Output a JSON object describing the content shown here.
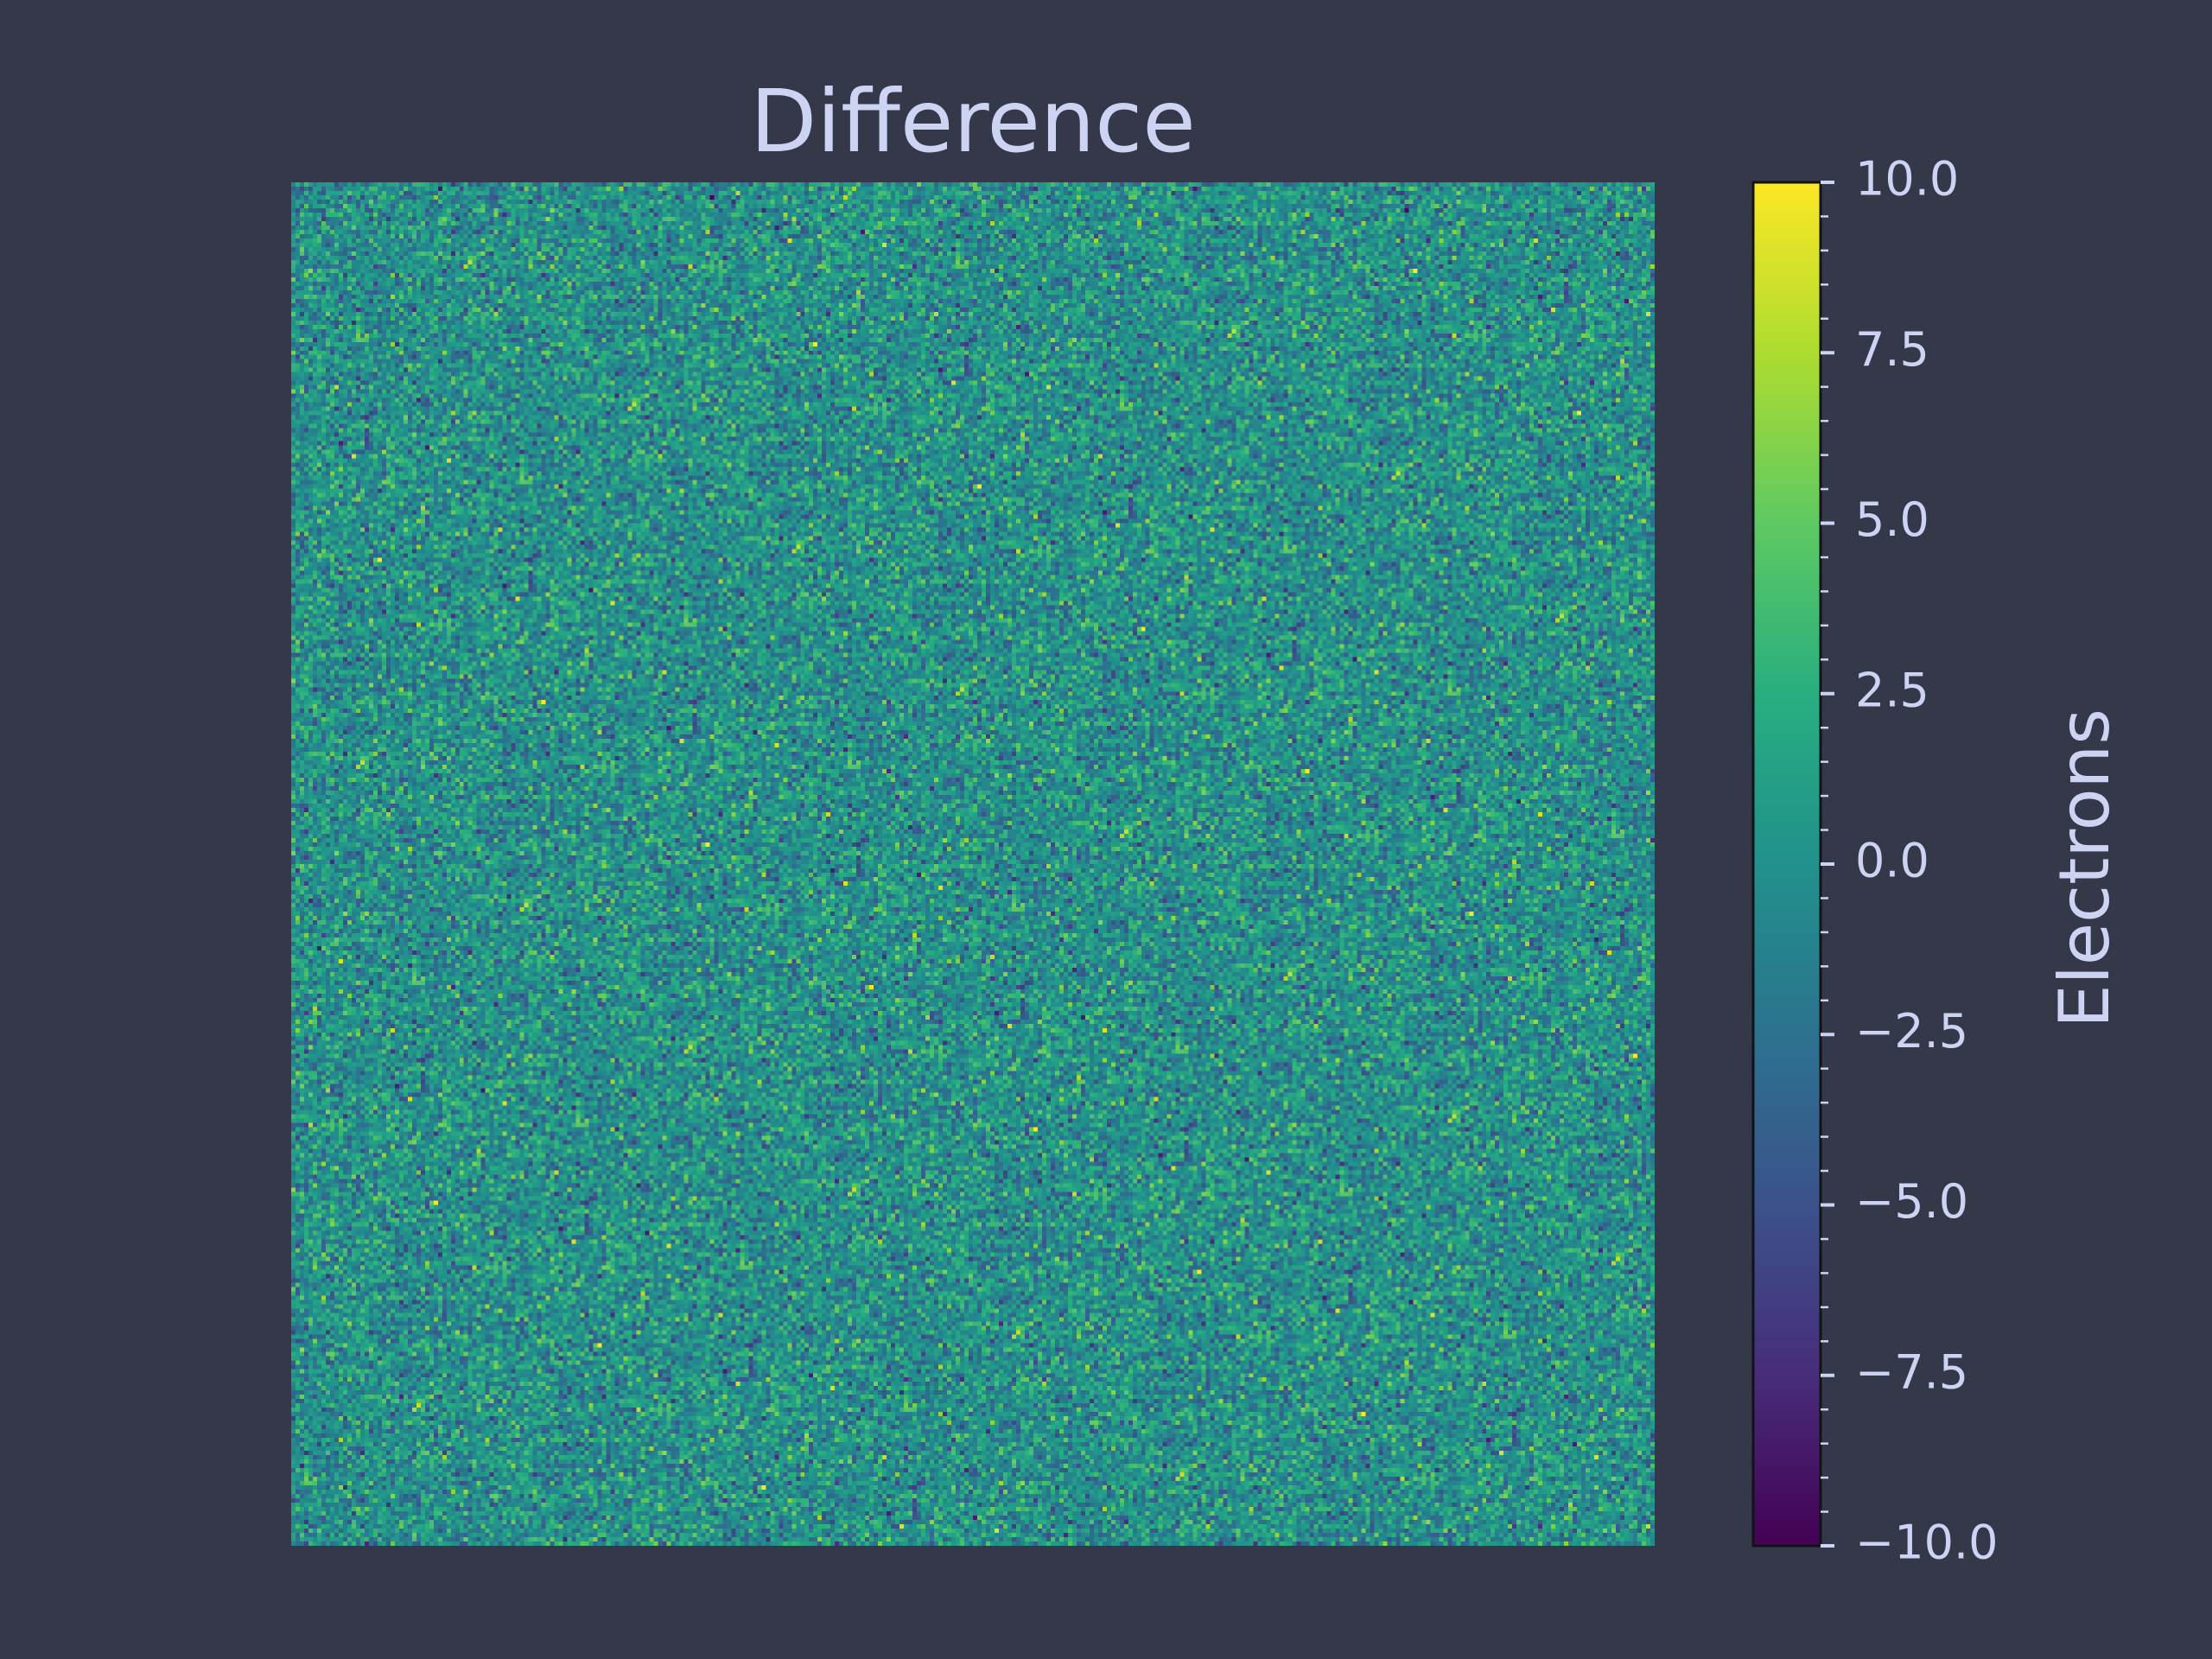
{
  "chart_data": {
    "type": "heatmap",
    "title": "Difference",
    "colormap": "viridis",
    "vmin": -10.0,
    "vmax": 10.0,
    "colorbar": {
      "label": "Electrons",
      "ticks": [
        10.0,
        7.5,
        5.0,
        2.5,
        0.0,
        -2.5,
        -5.0,
        -7.5,
        -10.0
      ],
      "tick_labels": [
        "10.0",
        "7.5",
        "5.0",
        "2.5",
        "0.0",
        "−2.5",
        "−5.0",
        "−7.5",
        "−10.0"
      ],
      "minor_ticks_per_major": 4
    },
    "noise": {
      "mean": 0.0,
      "std": 2.5
    },
    "axes_visible": false,
    "grid": false
  },
  "colors": {
    "background": "#343849",
    "text": "#cdd3f2"
  }
}
